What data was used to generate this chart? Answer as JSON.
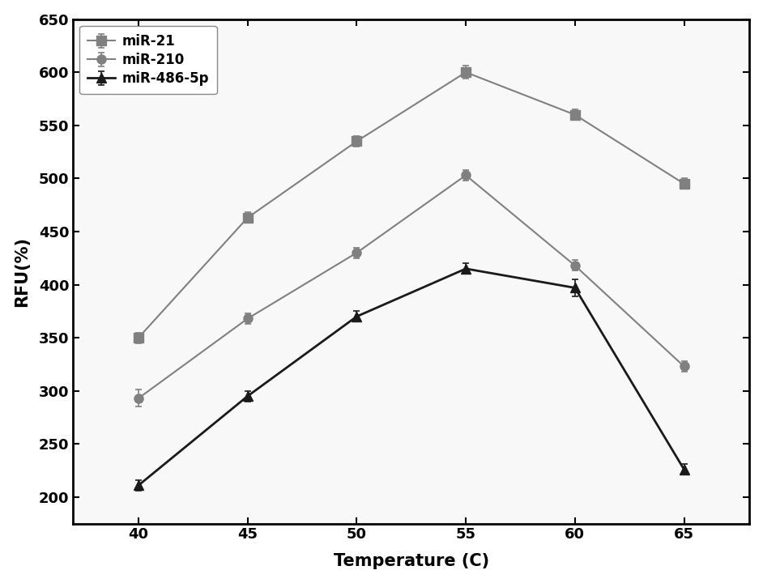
{
  "x": [
    40,
    45,
    50,
    55,
    60,
    65
  ],
  "miR21": [
    350,
    463,
    535,
    600,
    560,
    495
  ],
  "miR210": [
    293,
    368,
    430,
    503,
    418,
    323
  ],
  "miR486": [
    211,
    295,
    370,
    415,
    397,
    226
  ],
  "miR21_err": [
    5,
    5,
    5,
    6,
    5,
    5
  ],
  "miR210_err": [
    8,
    5,
    5,
    5,
    5,
    5
  ],
  "miR486_err": [
    5,
    5,
    5,
    5,
    8,
    5
  ],
  "xlabel": "Temperature (C)",
  "ylabel": "RFU(%)",
  "ylim": [
    175,
    650
  ],
  "yticks": [
    200,
    250,
    300,
    350,
    400,
    450,
    500,
    550,
    600,
    650
  ],
  "xticks": [
    40,
    45,
    50,
    55,
    60,
    65
  ],
  "legend_labels": [
    "miR-21",
    "miR-210",
    "miR-486-5p"
  ],
  "gray_color": "#808080",
  "dark_color": "#1a1a1a",
  "bg_color": "#f0f0f0",
  "plot_bg": "#f8f8f8"
}
